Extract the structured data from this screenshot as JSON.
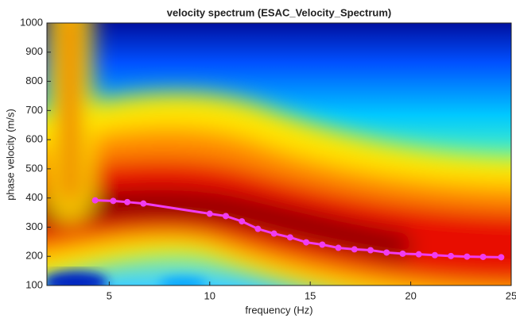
{
  "chart_data": {
    "type": "line",
    "title": "velocity spectrum (ESAC_Velocity_Spectrum)",
    "xlabel": "frequency (Hz)",
    "ylabel": "phase velocity (m/s)",
    "xlim": [
      1.9,
      25
    ],
    "ylim": [
      100,
      1000
    ],
    "xticks": [
      5,
      10,
      15,
      20,
      25
    ],
    "yticks": [
      100,
      200,
      300,
      400,
      500,
      600,
      700,
      800,
      900,
      1000
    ],
    "x": [
      4.3,
      5.2,
      5.9,
      6.7,
      10.0,
      10.8,
      11.6,
      12.4,
      13.2,
      14.0,
      14.8,
      15.6,
      16.4,
      17.2,
      18.0,
      18.8,
      19.6,
      20.4,
      21.2,
      22.0,
      22.8,
      23.6,
      24.5
    ],
    "series": [
      {
        "color": "#f03cf0",
        "values": [
          392,
          390,
          386,
          381,
          346,
          338,
          320,
          294,
          278,
          265,
          248,
          240,
          229,
          224,
          221,
          213,
          209,
          207,
          204,
          201,
          199,
          198,
          197
        ]
      }
    ]
  }
}
